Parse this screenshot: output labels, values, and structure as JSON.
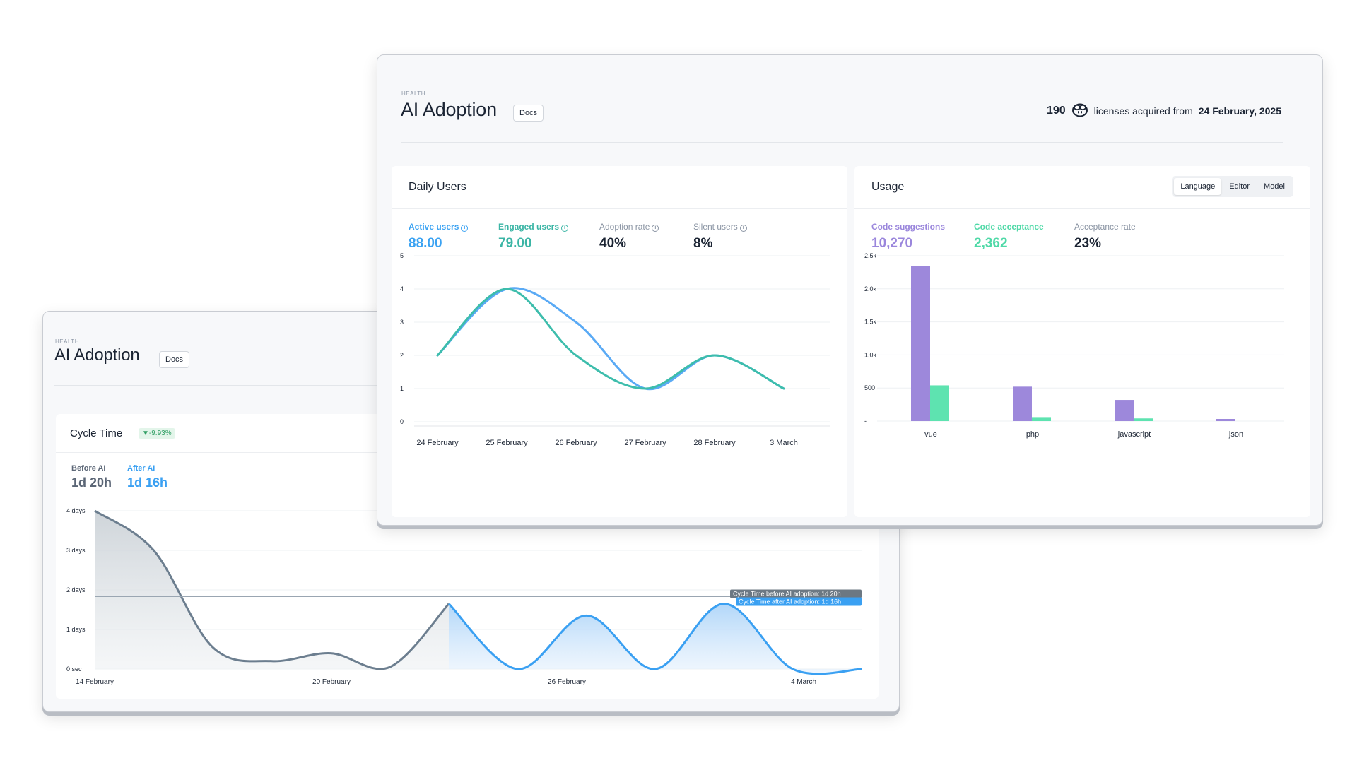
{
  "back_window": {
    "eyebrow": "HEALTH",
    "title": "AI Adoption",
    "docs_label": "Docs",
    "cycle_card": {
      "title": "Cycle Time",
      "badge": "▼-9.93%",
      "before_label": "Before AI",
      "before_value": "1d 20h",
      "after_label": "After AI",
      "after_value": "1d 16h",
      "tooltip_before": "Cycle Time before AI adoption: 1d 20h",
      "tooltip_after": "Cycle Time after AI adoption: 1d 16h"
    }
  },
  "front_window": {
    "eyebrow": "HEALTH",
    "title": "AI Adoption",
    "docs_label": "Docs",
    "licenses": {
      "count": "190",
      "text": "licenses acquired from",
      "date": "24 February, 2025"
    },
    "daily_users": {
      "title": "Daily Users",
      "metrics": [
        {
          "label": "Active users",
          "value": "88.00",
          "color": "#3aa2f2"
        },
        {
          "label": "Engaged users",
          "value": "79.00",
          "color": "#3bb5a5"
        },
        {
          "label": "Adoption rate",
          "value": "40%",
          "color": "#1b2433"
        },
        {
          "label": "Silent users",
          "value": "8%",
          "color": "#1b2433"
        }
      ]
    },
    "usage": {
      "title": "Usage",
      "tabs": [
        "Language",
        "Editor",
        "Model"
      ],
      "active_tab": "Language",
      "metrics": [
        {
          "label": "Code suggestions",
          "value": "10,270",
          "color": "#9a86dc"
        },
        {
          "label": "Code acceptance",
          "value": "2,362",
          "color": "#4fd9a7"
        },
        {
          "label": "Acceptance rate",
          "value": "23%",
          "color": "#1b2433"
        }
      ]
    }
  },
  "colors": {
    "active": "#5aaaf5",
    "engaged": "#3dbdac",
    "suggestions": "#9d88db",
    "acceptance": "#5ee3b0",
    "cycle_before": "#6c7e8f",
    "cycle_after": "#3aa0f2"
  },
  "chart_data": [
    {
      "type": "line",
      "name": "Daily Users",
      "categories": [
        "24 February",
        "25 February",
        "26 February",
        "27 February",
        "28 February",
        "3 March"
      ],
      "ylim": [
        0,
        5
      ],
      "yticks": [
        "0",
        "1",
        "2",
        "3",
        "4",
        "5"
      ],
      "series": [
        {
          "name": "Active users",
          "values": [
            2,
            4,
            3,
            1,
            2,
            1
          ]
        },
        {
          "name": "Engaged users",
          "values": [
            2,
            4,
            2,
            1,
            2,
            1
          ]
        }
      ],
      "grid": true
    },
    {
      "type": "bar",
      "name": "Usage",
      "categories": [
        "vue",
        "php",
        "javascript",
        "json"
      ],
      "ylim": [
        0,
        2500
      ],
      "yticks": [
        "-",
        "500",
        "1.0k",
        "1.5k",
        "2.0k",
        "2.5k"
      ],
      "series": [
        {
          "name": "Code suggestions",
          "values": [
            2340,
            520,
            320,
            30
          ]
        },
        {
          "name": "Code acceptance",
          "values": [
            540,
            60,
            40,
            0
          ]
        }
      ],
      "grid": true
    },
    {
      "type": "area",
      "name": "Cycle Time",
      "yticks": [
        "0 sec",
        "1 days",
        "2 days",
        "3 days",
        "4 days"
      ],
      "ylim": [
        0,
        4
      ],
      "xticks": [
        "14 February",
        "20 February",
        "26 February",
        "4 March"
      ],
      "before": [
        4.0,
        3.0,
        0.55,
        0.2,
        0.4,
        0.05,
        1.65
      ],
      "after": [
        1.65,
        0.0,
        1.35,
        0.0,
        1.65,
        0.0,
        0.0
      ],
      "avg_before": 1.83,
      "avg_after": 1.67
    }
  ]
}
